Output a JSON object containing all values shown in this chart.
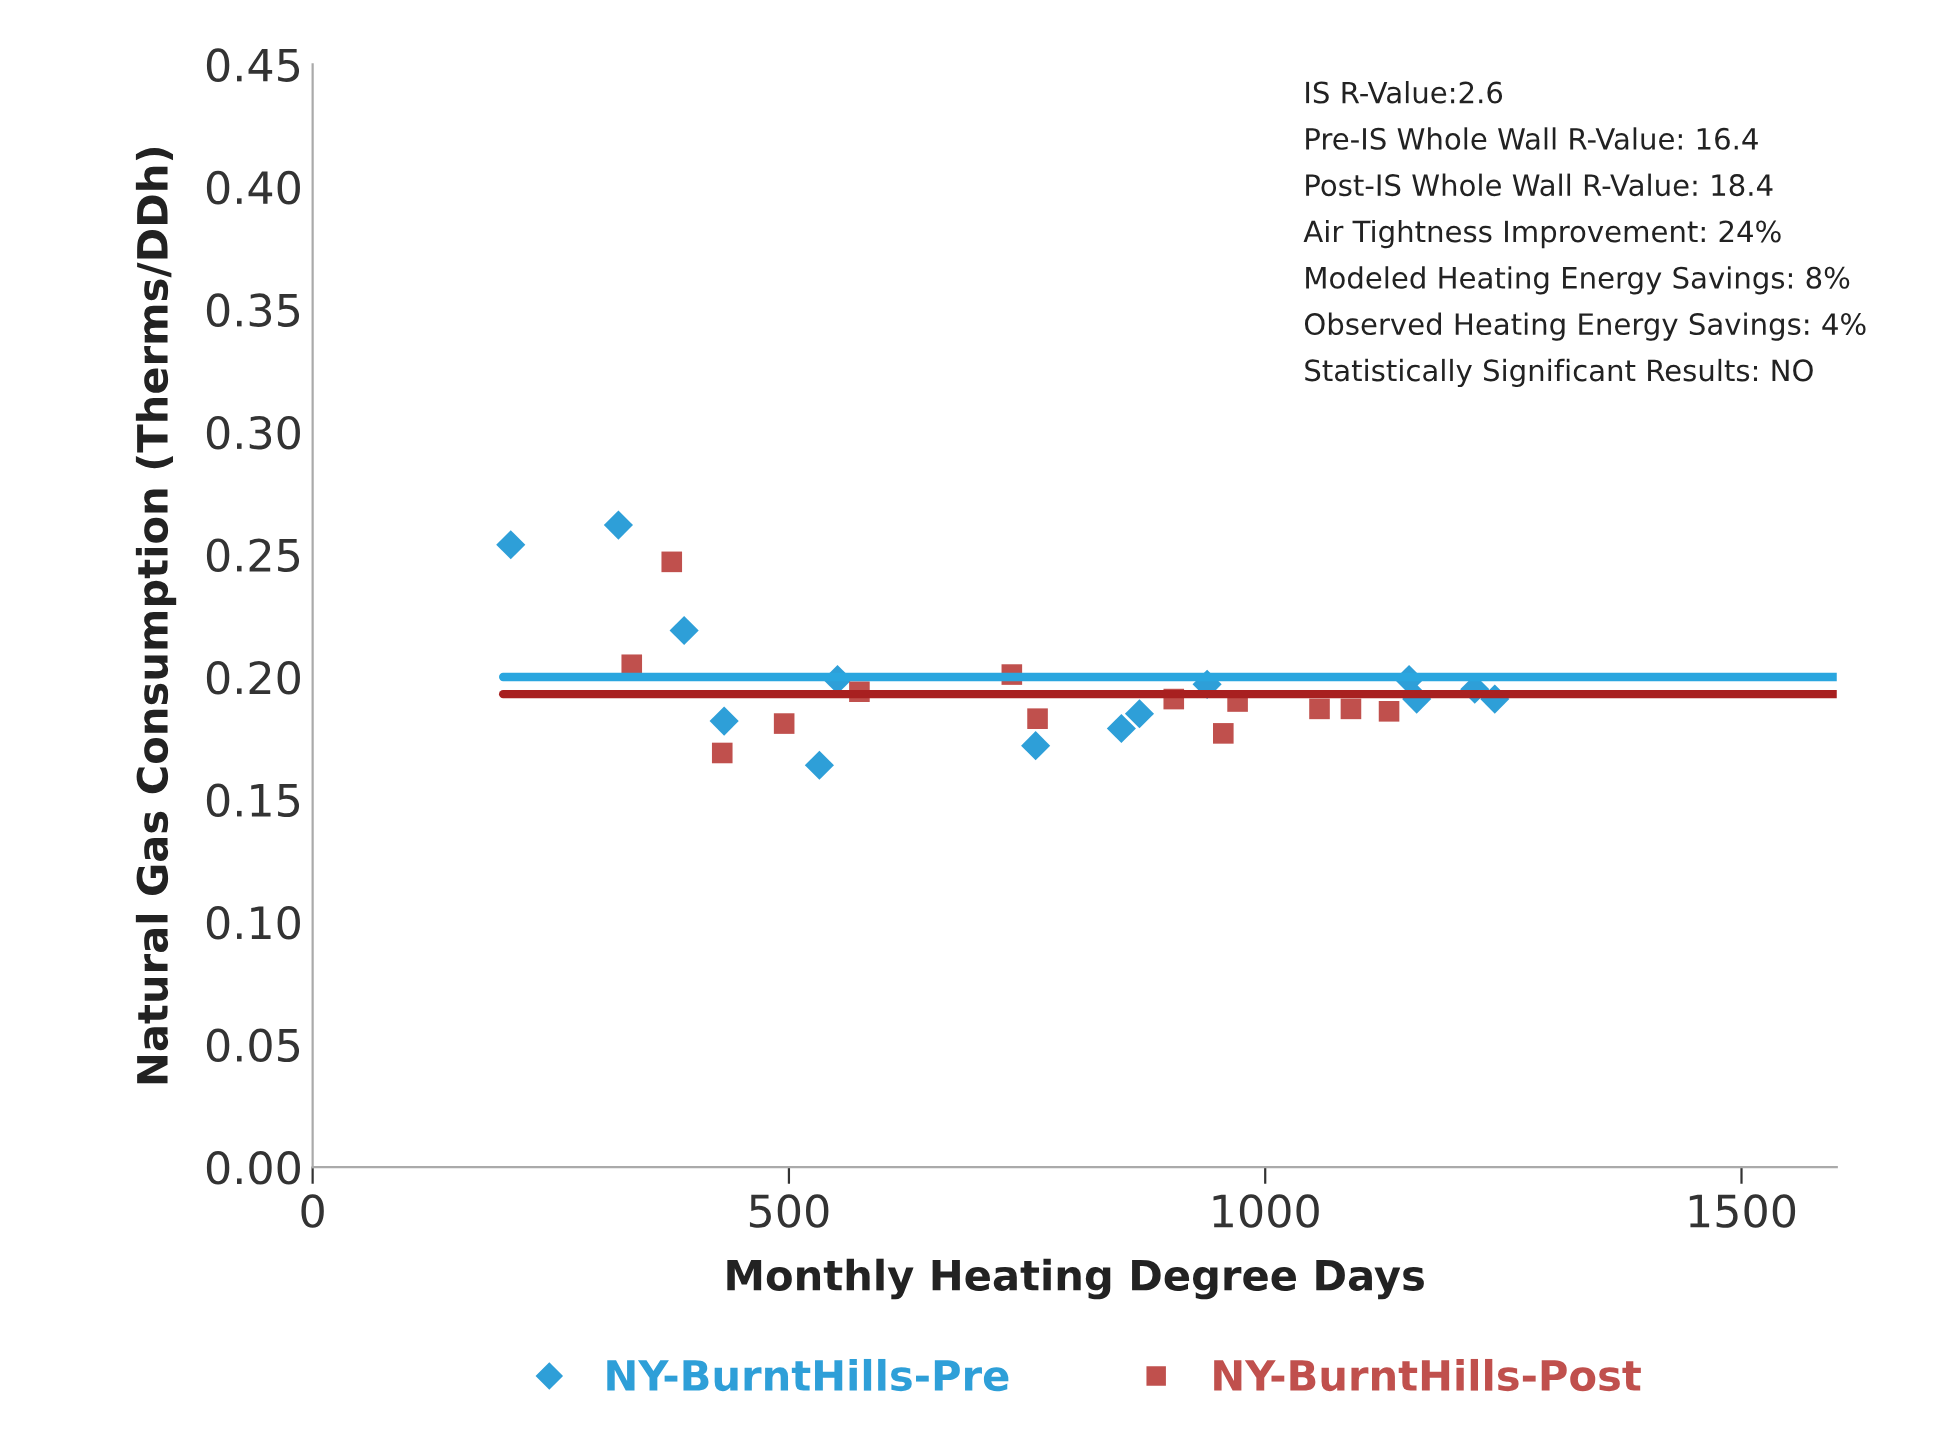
{
  "chart_data": {
    "type": "scatter",
    "xlabel": "Monthly Heating Degree Days",
    "ylabel": "Natural Gas Consumption (Therms/DDh)",
    "xlim": [
      0,
      1600
    ],
    "xticks": [
      0,
      500,
      1000,
      1500
    ],
    "ylim": [
      0,
      0.45
    ],
    "yticks": [
      {
        "value": 0,
        "label": "0.00"
      },
      {
        "value": 0.05,
        "label": "0.05"
      },
      {
        "value": 0.1,
        "label": "0.10"
      },
      {
        "value": 0.15,
        "label": "0.15"
      },
      {
        "value": 0.2,
        "label": "0.20"
      },
      {
        "value": 0.25,
        "label": "0.25"
      },
      {
        "value": 0.3,
        "label": "0.30"
      },
      {
        "value": 0.35,
        "label": "0.35"
      },
      {
        "value": 0.4,
        "label": "0.40"
      },
      {
        "value": 0.45,
        "label": "0.45"
      }
    ],
    "grid": false,
    "legend": "bottom",
    "series": [
      {
        "name": "NY-BurntHills-Pre",
        "color": "#2e9fd8",
        "marker": "diamond",
        "x": [
          208,
          321,
          390,
          432,
          532,
          551,
          759,
          849,
          868,
          939,
          1151,
          1159,
          1220,
          1241
        ],
        "values": [
          0.254,
          0.262,
          0.219,
          0.182,
          0.164,
          0.199,
          0.172,
          0.179,
          0.185,
          0.197,
          0.199,
          0.191,
          0.195,
          0.191
        ]
      },
      {
        "name": "NY-BurntHills-Post",
        "color": "#c0504d",
        "marker": "square",
        "x": [
          335,
          377,
          430,
          495,
          574,
          734,
          761,
          904,
          956,
          971,
          1057,
          1090,
          1130
        ],
        "values": [
          0.205,
          0.247,
          0.169,
          0.181,
          0.194,
          0.201,
          0.183,
          0.191,
          0.177,
          0.19,
          0.187,
          0.187,
          0.186
        ]
      },
      {
        "type": "line",
        "color": "#2aa6df",
        "x": [
          200,
          1600
        ],
        "values": [
          0.2,
          0.2
        ]
      },
      {
        "type": "line",
        "color": "#a82020",
        "x": [
          200,
          1600
        ],
        "values": [
          0.193,
          0.193
        ]
      }
    ],
    "annotations": [
      "IS R-Value:2.6",
      "Pre-IS Whole Wall R-Value: 16.4",
      "Post-IS Whole Wall R-Value: 18.4",
      "Air Tightness Improvement: 24%",
      "Modeled Heating Energy Savings: 8%",
      "Observed Heating Energy Savings: 4%",
      "Statistically Significant Results: NO"
    ]
  }
}
